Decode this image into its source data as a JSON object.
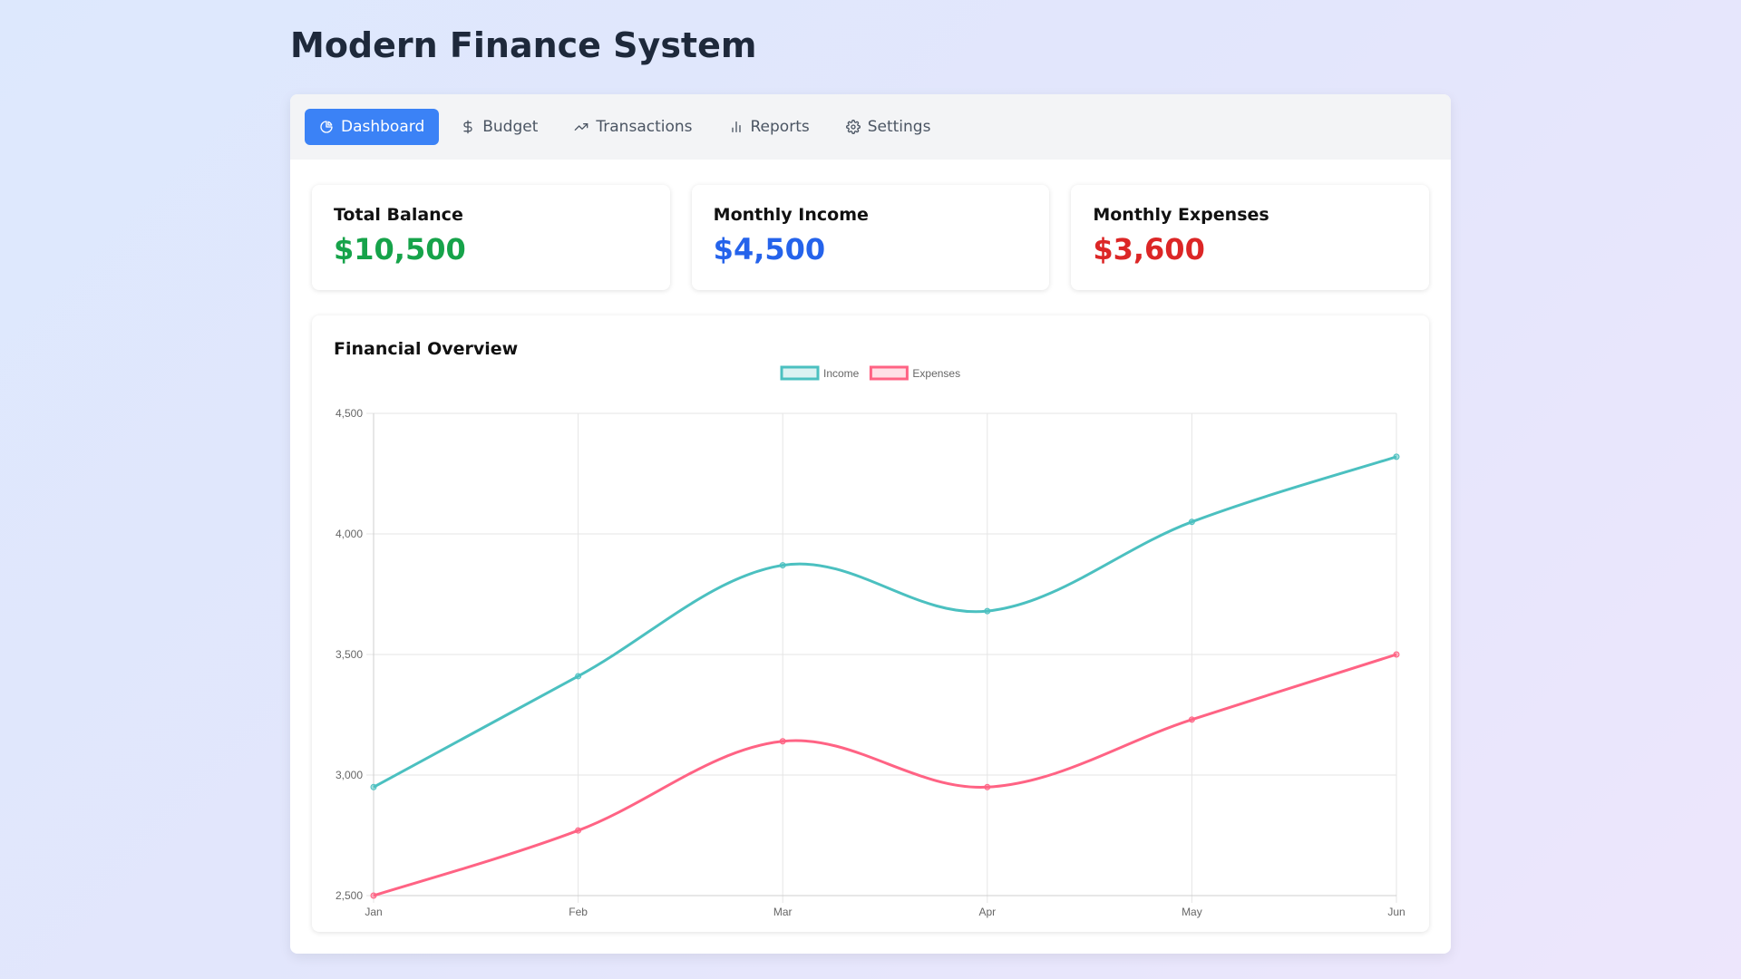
{
  "page": {
    "title": "Modern Finance System"
  },
  "tabs": [
    {
      "label": "Dashboard",
      "icon": "pie-chart-icon",
      "active": true
    },
    {
      "label": "Budget",
      "icon": "dollar-icon",
      "active": false
    },
    {
      "label": "Transactions",
      "icon": "trending-up-icon",
      "active": false
    },
    {
      "label": "Reports",
      "icon": "bar-chart-icon",
      "active": false
    },
    {
      "label": "Settings",
      "icon": "gear-icon",
      "active": false
    }
  ],
  "stats": [
    {
      "label": "Total Balance",
      "value": "$10,500",
      "color": "#16a34a"
    },
    {
      "label": "Monthly Income",
      "value": "$4,500",
      "color": "#2563eb"
    },
    {
      "label": "Monthly Expenses",
      "value": "$3,600",
      "color": "#dc2626"
    }
  ],
  "overview": {
    "title": "Financial Overview"
  },
  "colors": {
    "accent": "#3b82f6",
    "income": "#4bc0c0",
    "expenses": "#ff6384"
  },
  "chart_data": {
    "type": "line",
    "title": "",
    "xlabel": "",
    "ylabel": "",
    "categories": [
      "Jan",
      "Feb",
      "Mar",
      "Apr",
      "May",
      "Jun"
    ],
    "series": [
      {
        "name": "Income",
        "values": [
          2950,
          3410,
          3870,
          3680,
          4050,
          4320
        ],
        "color": "#4bc0c0"
      },
      {
        "name": "Expenses",
        "values": [
          2500,
          2770,
          3140,
          2950,
          3230,
          3500
        ],
        "color": "#ff6384"
      }
    ],
    "ylim": [
      2500,
      4500
    ],
    "yticks": [
      2500,
      3000,
      3500,
      4000,
      4500
    ],
    "ytick_labels": [
      "2,500",
      "3,000",
      "3,500",
      "4,000",
      "4,500"
    ],
    "grid": true,
    "legend": "top-center"
  }
}
